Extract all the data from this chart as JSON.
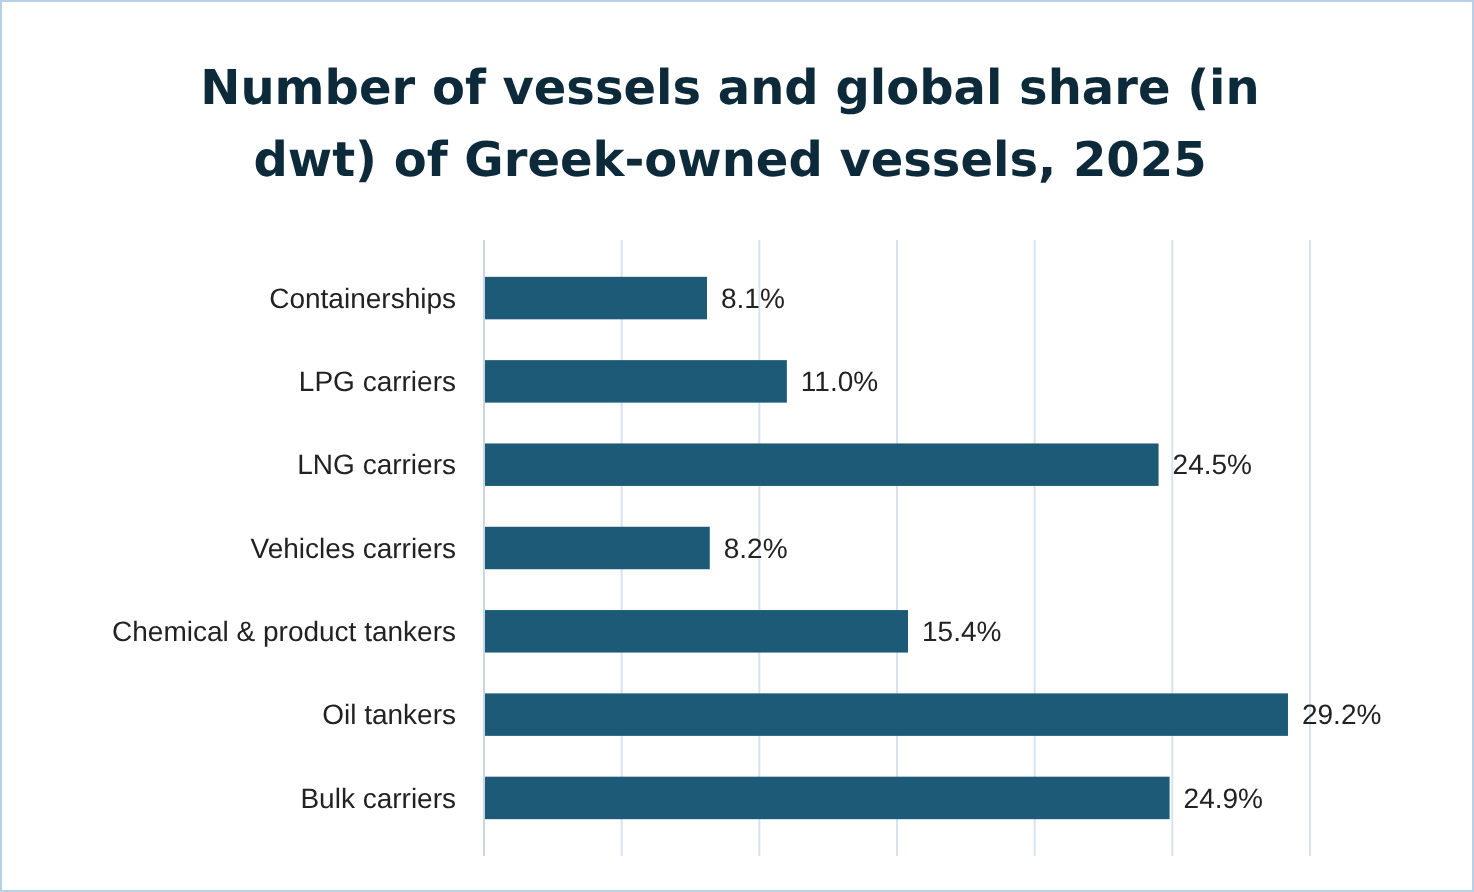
{
  "chart_data": {
    "type": "bar",
    "orientation": "horizontal",
    "title": "Number of vessels and global share (in dwt) of Greek-owned vessels, 2025",
    "categories": [
      "Containerships",
      "LPG carriers",
      "LNG carriers",
      "Vehicles carriers",
      "Chemical & product tankers",
      "Oil tankers",
      "Bulk carriers"
    ],
    "values": [
      8.1,
      11.0,
      24.5,
      8.2,
      15.4,
      29.2,
      24.9
    ],
    "value_labels": [
      "8.1%",
      "11.0%",
      "24.5%",
      "8.2%",
      "15.4%",
      "29.2%",
      "24.9%"
    ],
    "color": "#1d5a78",
    "xlim": [
      0,
      30
    ],
    "xticks": [
      {
        "value": 0,
        "label": null
      },
      {
        "value": 5,
        "label": null
      },
      {
        "value": 10,
        "label": null
      },
      {
        "value": 15,
        "label": null
      },
      {
        "value": 20,
        "label": null
      },
      {
        "value": 25,
        "label": null
      },
      {
        "value": 30,
        "label": null
      }
    ],
    "grid": "x",
    "tick_labels": "y"
  }
}
